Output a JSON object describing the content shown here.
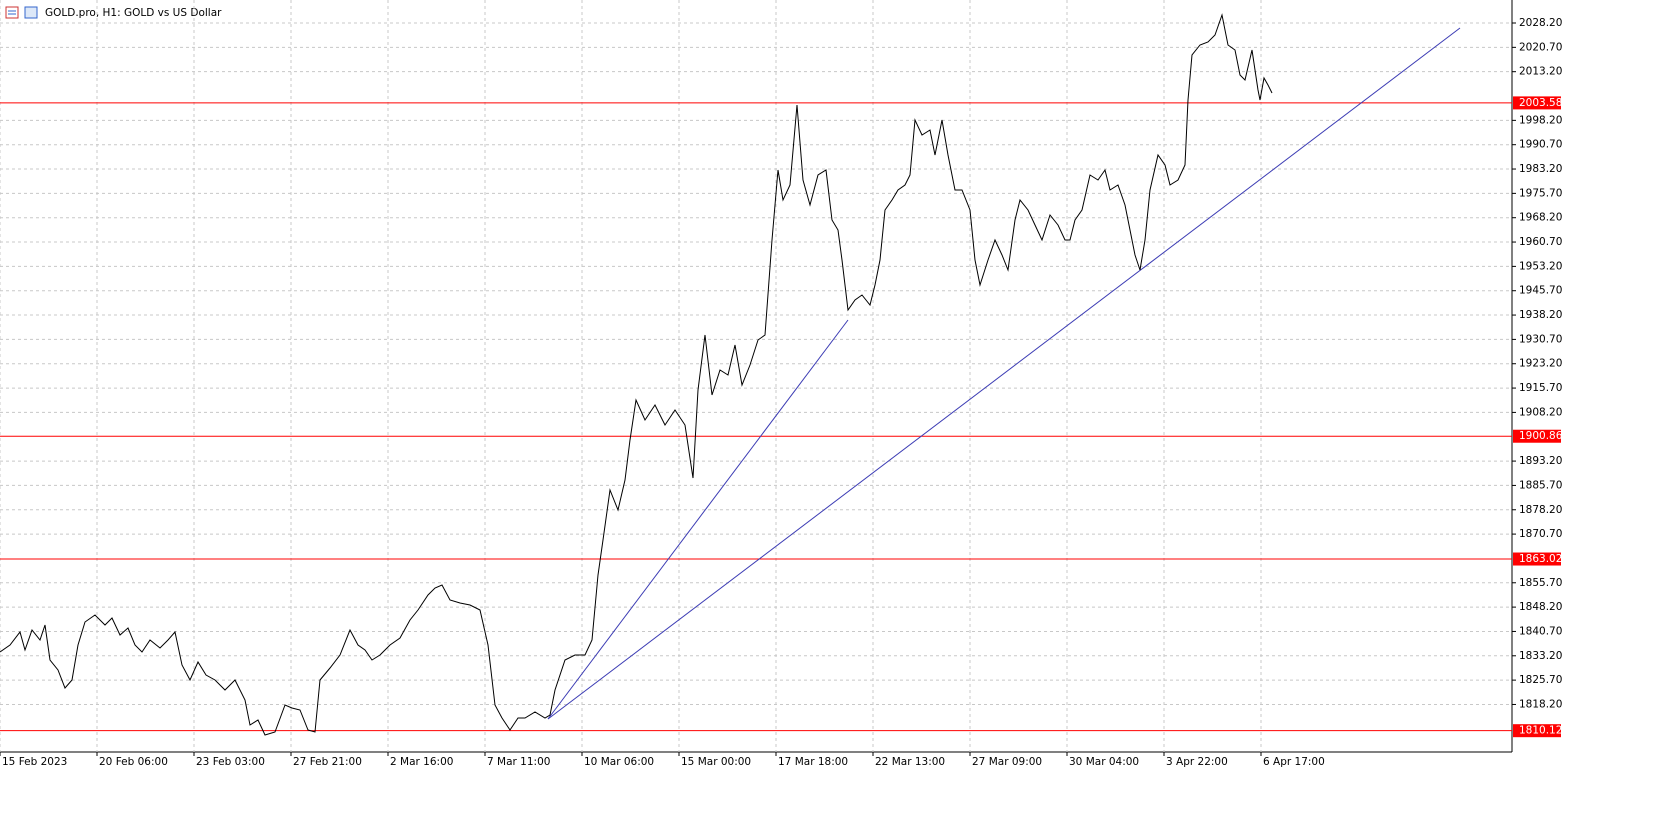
{
  "chart_data": {
    "type": "line",
    "title": "GOLD.pro, H1:  GOLD vs US Dollar",
    "x": [
      0,
      5,
      10,
      12.5,
      16,
      20,
      22.5,
      25,
      29,
      32.5,
      36,
      39,
      42.5,
      47.5,
      52.5,
      56,
      60,
      64,
      67.5,
      71,
      75,
      80,
      84,
      87.5,
      91,
      95,
      99,
      103,
      107.5,
      112.5,
      117.5,
      122.5,
      125,
      129,
      132.5,
      137.5,
      142.5,
      146,
      150,
      154,
      157.5,
      160,
      165,
      170,
      175,
      179,
      182.5,
      186,
      190,
      195,
      200,
      205,
      209,
      214,
      217.5,
      221,
      225,
      230,
      235,
      240,
      244,
      247.5,
      251,
      255,
      259,
      262.5,
      267.5,
      272.5,
      275,
      277.5,
      282.5,
      287.5,
      292.5,
      296,
      299,
      301.5,
      305,
      309,
      312.5,
      315,
      318,
      322.5,
      327.5,
      332.5,
      337.5,
      342.5,
      346.5,
      349,
      352.5,
      356,
      360,
      364,
      367.5,
      371,
      375,
      379,
      382.5,
      386,
      389,
      391.5,
      395,
      398.5,
      401.5,
      405,
      409,
      413,
      416,
      419,
      421,
      424,
      427.5,
      431,
      435,
      437.5,
      440,
      442.5,
      446,
      449,
      452.5,
      455,
      457.5,
      461,
      465,
      467.5,
      471,
      474,
      477.5,
      481,
      485,
      487.5,
      490,
      494,
      497.5,
      501,
      504,
      507.5,
      510,
      514,
      517.5,
      521,
      525,
      529,
      532.5,
      535,
      537.5,
      541,
      545,
      549,
      552.5,
      555,
      559,
      562.5,
      565,
      567.5,
      570,
      572.5,
      575,
      579,
      582.5,
      585,
      589,
      592.5,
      594,
      596,
      600,
      604,
      607.5,
      611,
      614,
      617.5,
      620,
      622.5,
      626,
      629,
      630,
      632,
      634,
      636
    ],
    "values": [
      1834.36,
      1836.52,
      1840.53,
      1834.98,
      1841.14,
      1838.06,
      1842.68,
      1831.9,
      1828.82,
      1823.27,
      1825.73,
      1836.52,
      1843.61,
      1845.77,
      1842.68,
      1844.84,
      1839.6,
      1841.76,
      1836.52,
      1834.36,
      1838.06,
      1835.6,
      1838.06,
      1840.53,
      1830.36,
      1825.73,
      1831.28,
      1827.28,
      1825.73,
      1822.65,
      1825.73,
      1819.57,
      1811.87,
      1813.41,
      1808.79,
      1809.71,
      1818.03,
      1817.11,
      1816.49,
      1810.33,
      1809.71,
      1825.73,
      1829.43,
      1833.44,
      1841.14,
      1836.52,
      1834.98,
      1831.9,
      1833.44,
      1836.52,
      1838.68,
      1844.22,
      1847.31,
      1851.93,
      1854.09,
      1855.01,
      1850.39,
      1849.46,
      1848.85,
      1847.31,
      1836.52,
      1818.03,
      1814.02,
      1810.33,
      1814.02,
      1814.02,
      1815.87,
      1814.02,
      1814.95,
      1822.65,
      1831.9,
      1833.44,
      1833.44,
      1838.06,
      1858.09,
      1868.88,
      1884.29,
      1878.12,
      1887.37,
      1899.7,
      1912.02,
      1905.86,
      1910.48,
      1904.32,
      1908.94,
      1904.32,
      1887.98,
      1915.1,
      1932.05,
      1913.56,
      1921.27,
      1919.73,
      1928.97,
      1916.64,
      1922.81,
      1930.51,
      1932.05,
      1961.33,
      1982.9,
      1973.66,
      1978.28,
      2002.93,
      1979.82,
      1972.12,
      1981.36,
      1982.9,
      1967.49,
      1964.41,
      1955.17,
      1939.76,
      1942.84,
      1944.38,
      1941.3,
      1947.46,
      1955.17,
      1970.57,
      1973.66,
      1976.74,
      1978.28,
      1981.36,
      1998.31,
      1993.69,
      1995.23,
      1987.52,
      1998.31,
      1987.52,
      1976.74,
      1976.74,
      1970.57,
      1955.17,
      1947.46,
      1955.17,
      1961.33,
      1956.71,
      1952.08,
      1967.49,
      1973.66,
      1970.57,
      1965.95,
      1961.33,
      1969.03,
      1965.95,
      1961.33,
      1961.33,
      1967.49,
      1970.57,
      1981.36,
      1979.82,
      1982.9,
      1976.74,
      1978.28,
      1972.12,
      1964.41,
      1956.71,
      1952.08,
      1961.33,
      1976.74,
      1987.52,
      1984.44,
      1978.28,
      1979.82,
      1984.44,
      2004.47,
      2018.34,
      2021.42,
      2022.35,
      2024.5,
      2030.67,
      2021.42,
      2019.88,
      2012.18,
      2010.64,
      2019.88,
      2007.55,
      2004.47,
      2011.25,
      2009.1,
      2006.63
    ],
    "color": "#000000",
    "xlim": [
      0,
      756
    ],
    "xticks": [
      {
        "value": 0,
        "label": "15 Feb 2023"
      },
      {
        "value": 48.5,
        "label": "20 Feb 06:00"
      },
      {
        "value": 97,
        "label": "23 Feb 03:00"
      },
      {
        "value": 145.5,
        "label": "27 Feb 21:00"
      },
      {
        "value": 194,
        "label": "2 Mar 16:00"
      },
      {
        "value": 242.5,
        "label": "7 Mar 11:00"
      },
      {
        "value": 291,
        "label": "10 Mar 06:00"
      },
      {
        "value": 339.5,
        "label": "15 Mar 00:00"
      },
      {
        "value": 388,
        "label": "17 Mar 18:00"
      },
      {
        "value": 436.5,
        "label": "22 Mar 13:00"
      },
      {
        "value": 485,
        "label": "27 Mar 09:00"
      },
      {
        "value": 533.5,
        "label": "30 Mar 04:00"
      },
      {
        "value": 582,
        "label": "3 Apr 22:00"
      },
      {
        "value": 630.5,
        "label": "6 Apr 17:00"
      }
    ],
    "ylim": [
      1803.55,
      2035.29
    ],
    "yticks": [
      {
        "value": 2028.2,
        "label": "2028.20"
      },
      {
        "value": 2020.7,
        "label": "2020.70"
      },
      {
        "value": 2013.2,
        "label": "2013.20"
      },
      {
        "value": 1998.2,
        "label": "1998.20"
      },
      {
        "value": 1990.7,
        "label": "1990.70"
      },
      {
        "value": 1983.2,
        "label": "1983.20"
      },
      {
        "value": 1975.7,
        "label": "1975.70"
      },
      {
        "value": 1968.2,
        "label": "1968.20"
      },
      {
        "value": 1960.7,
        "label": "1960.70"
      },
      {
        "value": 1953.2,
        "label": "1953.20"
      },
      {
        "value": 1945.7,
        "label": "1945.70"
      },
      {
        "value": 1938.2,
        "label": "1938.20"
      },
      {
        "value": 1930.7,
        "label": "1930.70"
      },
      {
        "value": 1923.2,
        "label": "1923.20"
      },
      {
        "value": 1915.7,
        "label": "1915.70"
      },
      {
        "value": 1908.2,
        "label": "1908.20"
      },
      {
        "value": 1893.2,
        "label": "1893.20"
      },
      {
        "value": 1885.7,
        "label": "1885.70"
      },
      {
        "value": 1878.2,
        "label": "1878.20"
      },
      {
        "value": 1870.7,
        "label": "1870.70"
      },
      {
        "value": 1855.7,
        "label": "1855.70"
      },
      {
        "value": 1848.2,
        "label": "1848.20"
      },
      {
        "value": 1840.7,
        "label": "1840.70"
      },
      {
        "value": 1833.2,
        "label": "1833.20"
      },
      {
        "value": 1825.7,
        "label": "1825.70"
      },
      {
        "value": 1818.2,
        "label": "1818.20"
      }
    ],
    "grid": true,
    "hlines": [
      {
        "value": 2003.58,
        "label": "2003.58"
      },
      {
        "value": 1900.86,
        "label": "1900.86"
      },
      {
        "value": 1863.02,
        "label": "1863.02"
      },
      {
        "value": 1810.12,
        "label": "1810.12"
      }
    ],
    "hline_color": "#ff0000",
    "trendlines": [
      {
        "x": [
          274,
          424
        ],
        "values": [
          1813.72,
          1936.68
        ]
      },
      {
        "x": [
          274,
          730
        ],
        "values": [
          1813.72,
          2026.66
        ]
      }
    ],
    "trend_color": "#3c3cb4"
  }
}
